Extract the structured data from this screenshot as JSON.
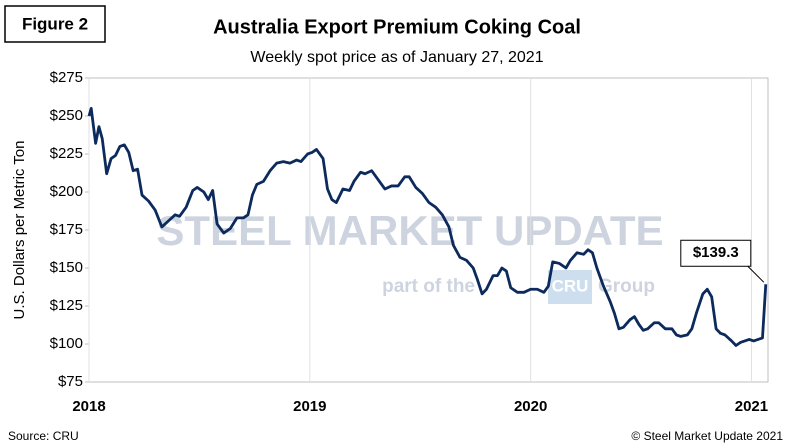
{
  "chart_data": {
    "type": "line",
    "figure_label": "Figure 2",
    "title": "Australia Export Premium Coking Coal",
    "subtitle": "Weekly spot price as of January 27, 2021",
    "y_label": "U.S. Dollars per Metric Ton",
    "source": "Source: CRU",
    "copyright": "© Steel Market Update 2021",
    "watermark": {
      "brand": "STEEL MARKET UPDATE",
      "prefix": "part of the",
      "logo": "CRU",
      "suffix": "Group"
    },
    "xlim": [
      2018,
      2021.075
    ],
    "xticks": [
      2018,
      2019,
      2020,
      2021
    ],
    "ylim": [
      75,
      275
    ],
    "yticks": [
      {
        "value": 75,
        "label": "$75"
      },
      {
        "value": 100,
        "label": "$100"
      },
      {
        "value": 125,
        "label": "$125"
      },
      {
        "value": 150,
        "label": "$150"
      },
      {
        "value": 175,
        "label": "$175"
      },
      {
        "value": 200,
        "label": "$200"
      },
      {
        "value": 225,
        "label": "$225"
      },
      {
        "value": 250,
        "label": "$250"
      },
      {
        "value": 275,
        "label": "$275"
      }
    ],
    "grid": "x",
    "x": [
      2018.0,
      2018.01,
      2018.03,
      2018.045,
      2018.06,
      2018.08,
      2018.1,
      2018.12,
      2018.14,
      2018.16,
      2018.18,
      2018.2,
      2018.22,
      2018.24,
      2018.27,
      2018.3,
      2018.33,
      2018.36,
      2018.39,
      2018.41,
      2018.44,
      2018.47,
      2018.49,
      2018.52,
      2018.54,
      2018.56,
      2018.58,
      2018.61,
      2018.64,
      2018.67,
      2018.7,
      2018.72,
      2018.74,
      2018.76,
      2018.79,
      2018.82,
      2018.85,
      2018.88,
      2018.91,
      2018.94,
      2018.96,
      2018.99,
      2019.01,
      2019.03,
      2019.06,
      2019.08,
      2019.1,
      2019.12,
      2019.15,
      2019.18,
      2019.2,
      2019.23,
      2019.25,
      2019.28,
      2019.31,
      2019.34,
      2019.37,
      2019.4,
      2019.43,
      2019.45,
      2019.48,
      2019.51,
      2019.54,
      2019.57,
      2019.6,
      2019.63,
      2019.65,
      2019.68,
      2019.71,
      2019.74,
      2019.76,
      2019.78,
      2019.8,
      2019.83,
      2019.85,
      2019.87,
      2019.89,
      2019.91,
      2019.94,
      2019.97,
      2020.0,
      2020.03,
      2020.06,
      2020.08,
      2020.1,
      2020.13,
      2020.16,
      2020.18,
      2020.21,
      2020.24,
      2020.26,
      2020.28,
      2020.3,
      2020.33,
      2020.36,
      2020.38,
      2020.4,
      2020.42,
      2020.45,
      2020.47,
      2020.49,
      2020.51,
      2020.53,
      2020.56,
      2020.58,
      2020.61,
      2020.64,
      2020.66,
      2020.68,
      2020.71,
      2020.73,
      2020.75,
      2020.78,
      2020.8,
      2020.82,
      2020.84,
      2020.86,
      2020.88,
      2020.91,
      2020.93,
      2020.95,
      2020.97,
      2020.99,
      2021.01,
      2021.03,
      2021.05,
      2021.065
    ],
    "series": [
      {
        "name": "Premium Coking Coal",
        "color": "#0d2a5c",
        "values": [
          250,
          255,
          232,
          243,
          235,
          212,
          222,
          224,
          230,
          231,
          226,
          214,
          215,
          198,
          194,
          188,
          177,
          181,
          185,
          184,
          190,
          201,
          203,
          200,
          195,
          201,
          179,
          173,
          176,
          183,
          183,
          185,
          198,
          205,
          207,
          214,
          219,
          220,
          219,
          221,
          220,
          225,
          226,
          228,
          222,
          202,
          195,
          193,
          202,
          201,
          207,
          213,
          212,
          214,
          208,
          202,
          204,
          204,
          210,
          210,
          203,
          199,
          193,
          190,
          185,
          177,
          165,
          157,
          155,
          150,
          142,
          133,
          136,
          145,
          145,
          150,
          148,
          137,
          134,
          134,
          136,
          136,
          134,
          138,
          154,
          153,
          150,
          155,
          160,
          159,
          162,
          160,
          150,
          138,
          128,
          120,
          110,
          111,
          116,
          118,
          113,
          109,
          110,
          114,
          114,
          110,
          110,
          106,
          105,
          106,
          110,
          120,
          133,
          136,
          131,
          110,
          107,
          106,
          102,
          99,
          101,
          102,
          103,
          102,
          103,
          104,
          139.3
        ],
        "value_labels": [
          null,
          null,
          null,
          null,
          null,
          null,
          null,
          null,
          null,
          null,
          null,
          null,
          null,
          null,
          null,
          null,
          null,
          null,
          null,
          null,
          null,
          null,
          null,
          null,
          null,
          null,
          null,
          null,
          null,
          null,
          null,
          null,
          null,
          null,
          null,
          null,
          null,
          null,
          null,
          null,
          null,
          null,
          null,
          null,
          null,
          null,
          null,
          null,
          null,
          null,
          null,
          null,
          null,
          null,
          null,
          null,
          null,
          null,
          null,
          null,
          null,
          null,
          null,
          null,
          null,
          null,
          null,
          null,
          null,
          null,
          null,
          null,
          null,
          null,
          null,
          null,
          null,
          null,
          null,
          null,
          null,
          null,
          null,
          null,
          null,
          null,
          null,
          null,
          null,
          null,
          null,
          null,
          null,
          null,
          null,
          null,
          null,
          null,
          null,
          null,
          null,
          null,
          null,
          null,
          null,
          null,
          null,
          null,
          null,
          null,
          null,
          null,
          null,
          null,
          null,
          null,
          null,
          null,
          null,
          null,
          null,
          null,
          null,
          null,
          null,
          null,
          "$139.3"
        ]
      }
    ]
  }
}
